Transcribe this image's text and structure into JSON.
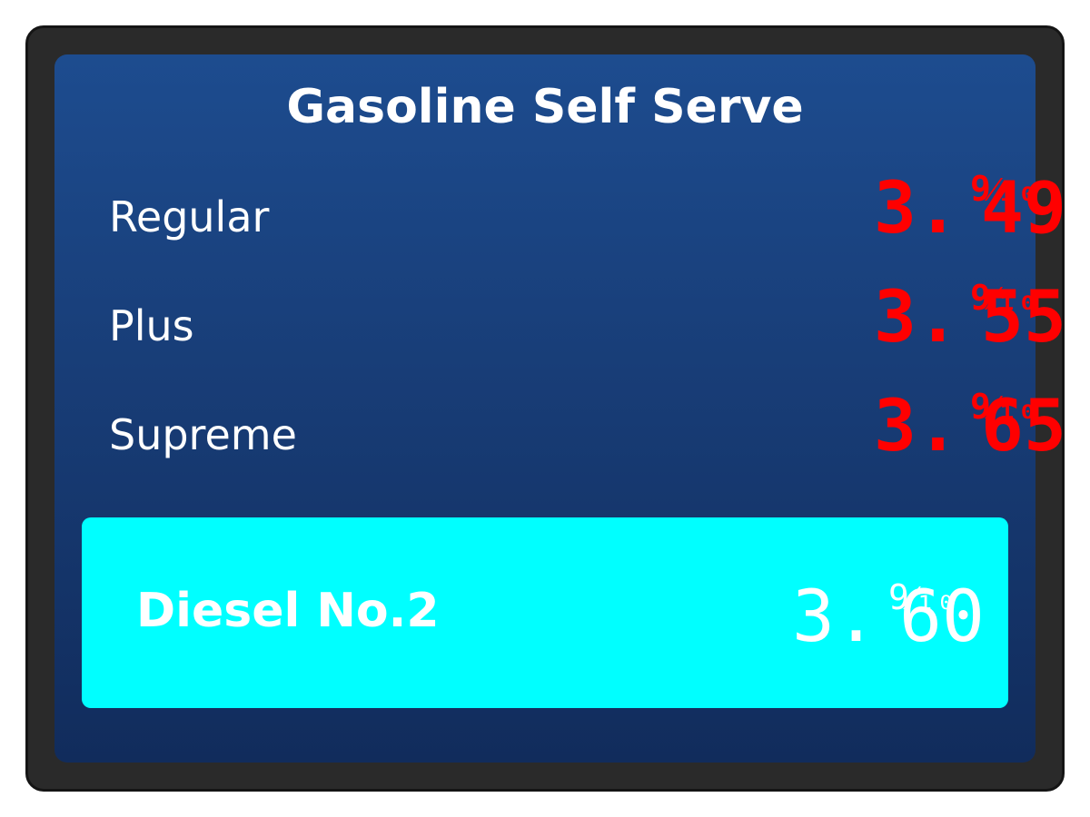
{
  "sign": {
    "title": "Gasoline Self Serve",
    "grades": [
      {
        "label": "Regular",
        "price_whole": "3.",
        "price_cents": "49",
        "price_tenth": "9⁄₁₀"
      },
      {
        "label": "Plus",
        "price_whole": "3.",
        "price_cents": "55",
        "price_tenth": "9⁄₁₀"
      },
      {
        "label": "Supreme",
        "price_whole": "3.",
        "price_cents": "65",
        "price_tenth": "9⁄₁₀"
      }
    ],
    "diesel": {
      "label": "Diesel No.2",
      "price_whole": "3.",
      "price_cents": "60",
      "price_tenth": "9⁄₁₀"
    }
  },
  "colors": {
    "panel_top": "#1d4c8f",
    "panel_bottom": "#112c5c",
    "frame": "#2a2a2a",
    "price_digits": "#ff0000",
    "diesel_box": "#00ffff",
    "text": "#ffffff"
  }
}
